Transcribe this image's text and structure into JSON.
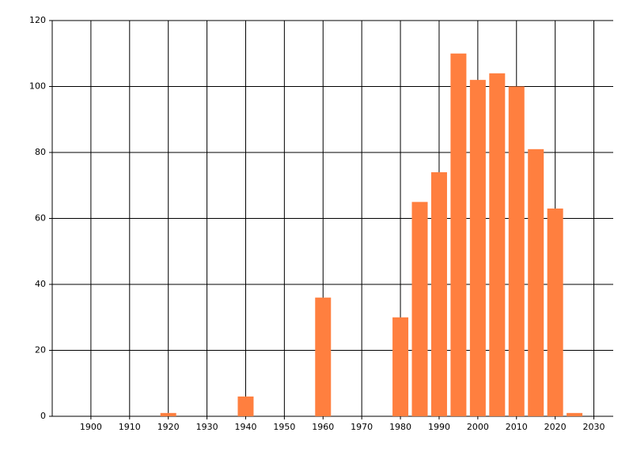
{
  "chart_data": {
    "type": "bar",
    "x": [
      1920,
      1940,
      1960,
      1980,
      1985,
      1990,
      1995,
      2000,
      2005,
      2010,
      2015,
      2020,
      2025
    ],
    "values": [
      1,
      6,
      36,
      30,
      65,
      74,
      110,
      102,
      104,
      100,
      81,
      63,
      1
    ],
    "color": "#ff7f3f",
    "xlim": [
      1890,
      2035
    ],
    "xticks": [
      1900,
      1910,
      1920,
      1930,
      1940,
      1950,
      1960,
      1970,
      1980,
      1990,
      2000,
      2010,
      2020,
      2030
    ],
    "ylim": [
      0,
      120
    ],
    "yticks": [
      0,
      20,
      40,
      60,
      80,
      100,
      120
    ],
    "grid": true
  }
}
